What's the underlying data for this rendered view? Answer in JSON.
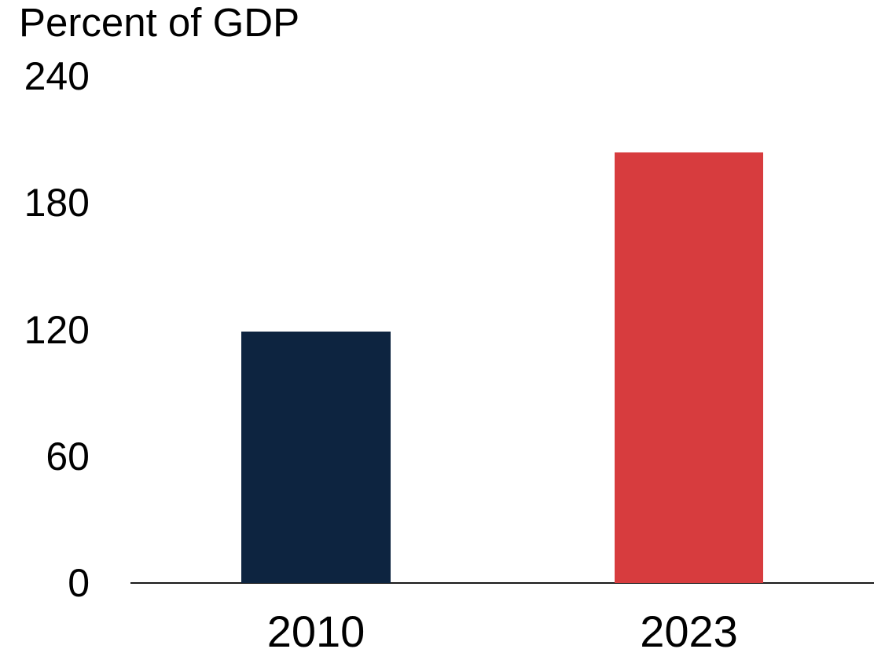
{
  "chart_data": {
    "type": "bar",
    "title": "Percent of GDP",
    "categories": [
      "2010",
      "2023"
    ],
    "values": [
      119,
      204
    ],
    "bar_colors": [
      "#0d2440",
      "#d73c3e"
    ],
    "ylim": [
      0,
      240
    ],
    "yticks": [
      0,
      60,
      120,
      180,
      240
    ],
    "xlabel": "",
    "ylabel": "Percent of GDP",
    "grid": false,
    "legend": false
  },
  "colors": {
    "background": "#ffffff",
    "text": "#000000",
    "axis_line": "#1a1a1a"
  }
}
